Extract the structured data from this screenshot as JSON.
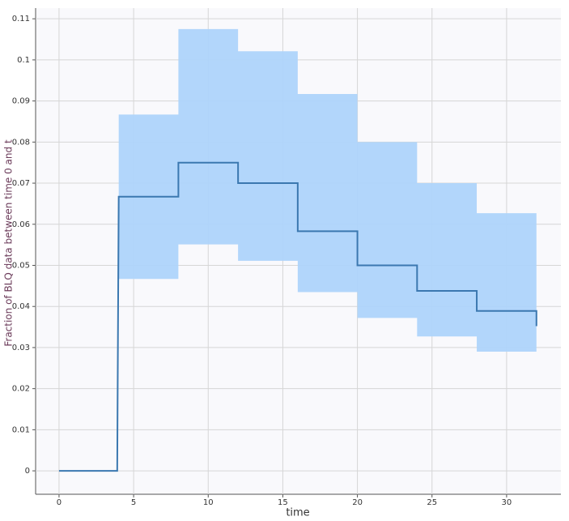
{
  "chart_data": {
    "type": "step-band",
    "x_label": "time",
    "y_label": "Fraction of BLQ data between time 0 and t",
    "xlim": [
      -1.57,
      33.64
    ],
    "ylim": [
      -0.0057,
      0.1126
    ],
    "xticks": [
      0,
      5,
      10,
      15,
      20,
      25,
      30
    ],
    "yticks": [
      0,
      0.01,
      0.02,
      0.03,
      0.04,
      0.05,
      0.06,
      0.07,
      0.08,
      0.09,
      0.1,
      0.11
    ],
    "grid": true,
    "line": {
      "color": "#3b78b0",
      "x": [
        0,
        3.9,
        4,
        8,
        8,
        12,
        12,
        16,
        16,
        20,
        20,
        24,
        24,
        28,
        28,
        32,
        32
      ],
      "values": [
        0,
        0,
        0.0667,
        0.0667,
        0.075,
        0.075,
        0.07,
        0.07,
        0.0583,
        0.0583,
        0.05,
        0.05,
        0.0438,
        0.0438,
        0.0389,
        0.0389,
        0.0352
      ]
    },
    "band": {
      "color": "#aed4fb",
      "x": [
        4,
        8,
        8,
        12,
        12,
        16,
        16,
        20,
        20,
        24,
        24,
        28,
        28,
        32,
        32
      ],
      "upper": [
        0.0867,
        0.0867,
        0.1075,
        0.1075,
        0.1021,
        0.1021,
        0.0917,
        0.0917,
        0.08,
        0.08,
        0.07,
        0.07,
        0.0627,
        0.0627,
        0.0567
      ],
      "lower": [
        0.0467,
        0.0467,
        0.0551,
        0.0551,
        0.0511,
        0.0511,
        0.0435,
        0.0435,
        0.0372,
        0.0372,
        0.0327,
        0.0327,
        0.029,
        0.029,
        0.0262
      ]
    }
  }
}
